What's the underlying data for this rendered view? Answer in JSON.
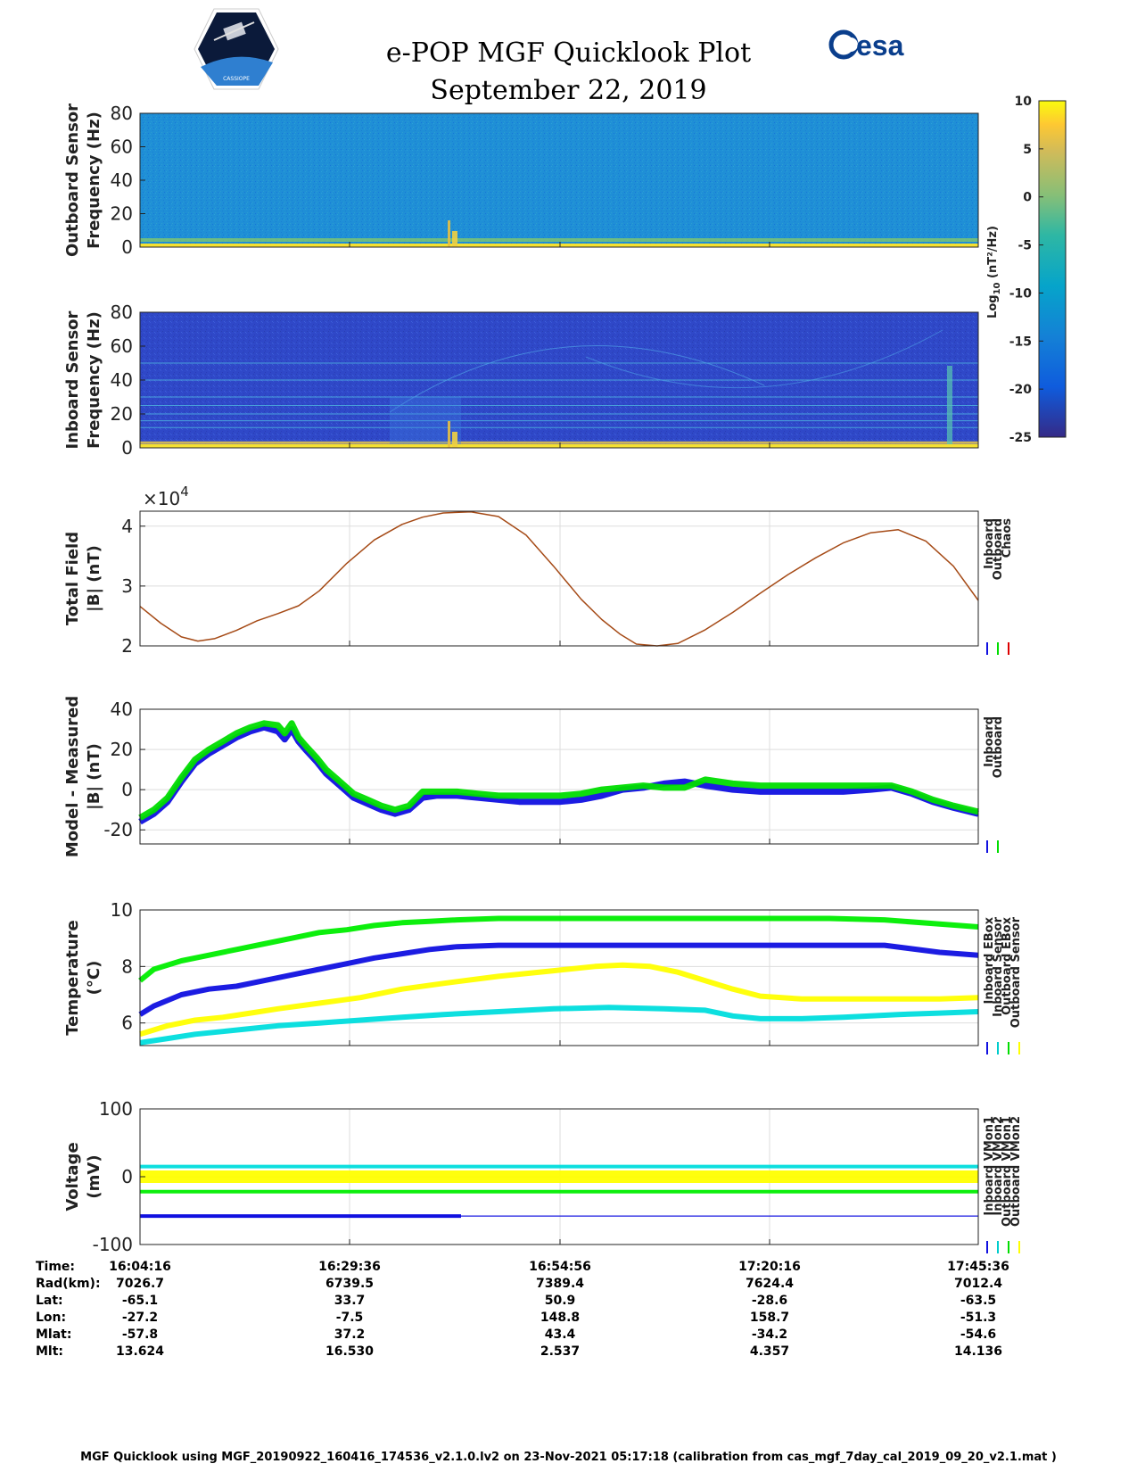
{
  "header": {
    "title": "e-POP MGF Quicklook Plot",
    "date": "September 22, 2019",
    "esa_logo_text": "esa",
    "mission_logo_text": "CASSIOPE"
  },
  "colorbar": {
    "label": "Log10 (nT²/Hz)",
    "label_main": "Log",
    "label_sub": "10",
    "label_rest": " (nT²/Hz)",
    "ticks": [
      10,
      5,
      0,
      -5,
      -10,
      -15,
      -20,
      -25
    ],
    "range": [
      -25,
      10
    ]
  },
  "footer": "MGF Quicklook using MGF_20190922_160416_174536_v2.1.0.lv2 on 23-Nov-2021 05:17:18 (calibration from cas_mgf_7day_cal_2019_09_20_v2.1.mat )",
  "info_table": {
    "labels": [
      "Time:",
      "Rad(km):",
      "Lat:",
      "Lon:",
      "Mlat:",
      "Mlt:"
    ],
    "columns": [
      [
        "16:04:16",
        "7026.7",
        "-65.1",
        "-27.2",
        "-57.8",
        "13.624"
      ],
      [
        "16:29:36",
        "6739.5",
        "33.7",
        "-7.5",
        "37.2",
        "16.530"
      ],
      [
        "16:54:56",
        "7389.4",
        "50.9",
        "148.8",
        "43.4",
        "2.537"
      ],
      [
        "17:20:16",
        "7624.4",
        "-28.6",
        "158.7",
        "-34.2",
        "4.357"
      ],
      [
        "17:45:36",
        "7012.4",
        "-63.5",
        "-51.3",
        "-54.6",
        "14.136"
      ]
    ]
  },
  "chart_data": [
    {
      "type": "heatmap",
      "id": "outboard-spectrogram",
      "ylabel": [
        "Outboard Sensor",
        "Frequency (Hz)"
      ],
      "ylim": [
        0,
        80
      ],
      "yticks": [
        0,
        20,
        40,
        60,
        80
      ],
      "xlim": [
        0,
        6080
      ],
      "description_levels": {
        "background": -12,
        "low_freq_band": 8
      }
    },
    {
      "type": "heatmap",
      "id": "inboard-spectrogram",
      "ylabel": [
        "Inboard Sensor",
        "Frequency (Hz)"
      ],
      "ylim": [
        0,
        80
      ],
      "yticks": [
        0,
        20,
        40,
        60,
        80
      ],
      "xlim": [
        0,
        6080
      ],
      "horizontal_lines_hz": [
        3,
        12,
        16,
        20,
        25,
        30,
        40,
        50
      ]
    },
    {
      "type": "line",
      "id": "total-field",
      "ylabel": [
        "Total Field",
        "|B| (nT)"
      ],
      "ylim": [
        20000,
        42500
      ],
      "yticks": [
        20000,
        30000,
        40000
      ],
      "ytick_labels": [
        "2",
        "3",
        "4"
      ],
      "exponent_label": "×10",
      "exponent_power": "4",
      "xlim": [
        0,
        6080
      ],
      "legend": [
        "Inboard",
        "Outboard",
        "Chaos"
      ],
      "legend_colors": [
        "#1010e0",
        "#00dd00",
        "#dd0000"
      ],
      "series": [
        {
          "name": "Chaos",
          "color": "#a0400a",
          "x": [
            0,
            150,
            300,
            420,
            540,
            700,
            850,
            1000,
            1150,
            1300,
            1500,
            1700,
            1900,
            2050,
            2200,
            2400,
            2600,
            2800,
            3000,
            3200,
            3350,
            3480,
            3600,
            3750,
            3900,
            4100,
            4300,
            4500,
            4700,
            4900,
            5100,
            5300,
            5500,
            5700,
            5900,
            6080
          ],
          "values": [
            26600,
            23800,
            21500,
            20800,
            21200,
            22600,
            24200,
            25400,
            26700,
            29200,
            33800,
            37700,
            40300,
            41500,
            42200,
            42400,
            41600,
            38500,
            33300,
            27800,
            24400,
            22000,
            20300,
            20000,
            20400,
            22700,
            25600,
            28800,
            31900,
            34700,
            37200,
            38900,
            39400,
            37500,
            33300,
            27600
          ]
        }
      ]
    },
    {
      "type": "line",
      "id": "model-minus-measured",
      "ylabel": [
        "Model - Measured",
        "|B| (nT)"
      ],
      "ylim": [
        -27,
        40
      ],
      "yticks": [
        -20,
        0,
        20,
        40
      ],
      "xlim": [
        0,
        6080
      ],
      "legend": [
        "Inboard",
        "Outboard"
      ],
      "legend_colors": [
        "#1010e0",
        "#00dd00"
      ],
      "series": [
        {
          "name": "Inboard",
          "color": "#1010e0",
          "x": [
            0,
            100,
            200,
            300,
            400,
            500,
            600,
            700,
            800,
            900,
            1000,
            1050,
            1100,
            1150,
            1200,
            1280,
            1350,
            1450,
            1550,
            1650,
            1750,
            1850,
            1950,
            2050,
            2150,
            2300,
            2450,
            2600,
            2750,
            2900,
            3050,
            3200,
            3350,
            3500,
            3650,
            3800,
            3950,
            4100,
            4300,
            4500,
            4700,
            4900,
            5100,
            5300,
            5450,
            5600,
            5750,
            5900,
            6080
          ],
          "values": [
            -16,
            -12,
            -6,
            4,
            13,
            18,
            22,
            26,
            29,
            31,
            29,
            25,
            30,
            24,
            20,
            14,
            8,
            2,
            -4,
            -7,
            -10,
            -12,
            -10,
            -4,
            -3,
            -3,
            -4,
            -5,
            -6,
            -6,
            -6,
            -5,
            -3,
            0,
            1,
            3,
            4,
            2,
            0,
            -1,
            -1,
            -1,
            -1,
            0,
            1,
            -2,
            -6,
            -9,
            -12
          ]
        },
        {
          "name": "Outboard",
          "color": "#00dd00",
          "x": [
            0,
            100,
            200,
            300,
            400,
            500,
            600,
            700,
            800,
            900,
            1000,
            1050,
            1100,
            1150,
            1200,
            1280,
            1350,
            1450,
            1550,
            1650,
            1750,
            1850,
            1950,
            2050,
            2150,
            2300,
            2450,
            2600,
            2750,
            2900,
            3050,
            3200,
            3350,
            3500,
            3650,
            3800,
            3950,
            4100,
            4300,
            4500,
            4700,
            4900,
            5100,
            5300,
            5450,
            5600,
            5750,
            5900,
            6080
          ],
          "values": [
            -14,
            -10,
            -4,
            6,
            15,
            20,
            24,
            28,
            31,
            33,
            32,
            28,
            33,
            26,
            22,
            16,
            10,
            4,
            -2,
            -5,
            -8,
            -10,
            -8,
            -1,
            -1,
            -1,
            -2,
            -3,
            -3,
            -3,
            -3,
            -2,
            0,
            1,
            2,
            1,
            1,
            5,
            3,
            2,
            2,
            2,
            2,
            2,
            2,
            -1,
            -5,
            -8,
            -11
          ]
        }
      ]
    },
    {
      "type": "line",
      "id": "temperature",
      "ylabel": [
        "Temperature",
        "(°C)"
      ],
      "ylim": [
        5.2,
        10
      ],
      "yticks": [
        6,
        8,
        10
      ],
      "xlim": [
        0,
        6080
      ],
      "legend": [
        "Inboard EBox",
        "Inboard Sensor",
        "Outboard EBox",
        "Outboard Sensor"
      ],
      "legend_colors": [
        "#1010e0",
        "#00cccc",
        "#00dd00",
        "#ffff00"
      ],
      "series": [
        {
          "name": "Inboard EBox",
          "color": "#1010e0",
          "x": [
            0,
            100,
            300,
            500,
            700,
            900,
            1100,
            1300,
            1500,
            1700,
            1900,
            2100,
            2300,
            2600,
            3000,
            3400,
            3800,
            4200,
            4600,
            5000,
            5400,
            5800,
            6080
          ],
          "values": [
            6.3,
            6.6,
            7.0,
            7.2,
            7.3,
            7.5,
            7.7,
            7.9,
            8.1,
            8.3,
            8.45,
            8.6,
            8.7,
            8.75,
            8.75,
            8.75,
            8.75,
            8.75,
            8.75,
            8.75,
            8.75,
            8.5,
            8.4
          ]
        },
        {
          "name": "Inboard Sensor",
          "color": "#00dddd",
          "x": [
            0,
            200,
            400,
            600,
            800,
            1000,
            1300,
            1600,
            1900,
            2200,
            2600,
            3000,
            3400,
            3800,
            4100,
            4300,
            4500,
            4800,
            5100,
            5500,
            5800,
            6080
          ],
          "values": [
            5.3,
            5.45,
            5.6,
            5.7,
            5.8,
            5.9,
            6.0,
            6.1,
            6.2,
            6.3,
            6.4,
            6.5,
            6.55,
            6.5,
            6.45,
            6.25,
            6.15,
            6.15,
            6.2,
            6.3,
            6.35,
            6.4
          ]
        },
        {
          "name": "Outboard EBox",
          "color": "#00ee00",
          "x": [
            0,
            100,
            300,
            500,
            700,
            900,
            1100,
            1300,
            1500,
            1700,
            1900,
            2100,
            2300,
            2600,
            3000,
            3400,
            3800,
            4200,
            4600,
            5000,
            5400,
            5800,
            6080
          ],
          "values": [
            7.5,
            7.9,
            8.2,
            8.4,
            8.6,
            8.8,
            9.0,
            9.2,
            9.3,
            9.45,
            9.55,
            9.6,
            9.65,
            9.7,
            9.7,
            9.7,
            9.7,
            9.7,
            9.7,
            9.7,
            9.65,
            9.5,
            9.4
          ]
        },
        {
          "name": "Outboard Sensor",
          "color": "#ffff00",
          "x": [
            0,
            200,
            400,
            600,
            800,
            1000,
            1300,
            1600,
            1900,
            2200,
            2600,
            3000,
            3300,
            3500,
            3700,
            3900,
            4100,
            4300,
            4500,
            4800,
            5100,
            5500,
            5800,
            6080
          ],
          "values": [
            5.6,
            5.9,
            6.1,
            6.2,
            6.35,
            6.5,
            6.7,
            6.9,
            7.2,
            7.4,
            7.65,
            7.85,
            8.0,
            8.05,
            8.0,
            7.8,
            7.5,
            7.2,
            6.95,
            6.85,
            6.85,
            6.85,
            6.85,
            6.9
          ]
        }
      ]
    },
    {
      "type": "line",
      "id": "voltage",
      "ylabel": [
        "Voltage",
        "(mV)"
      ],
      "ylim": [
        -100,
        100
      ],
      "yticks": [
        -100,
        0,
        100
      ],
      "xlim": [
        0,
        6080
      ],
      "xticks": [
        0,
        1520,
        3040,
        4560,
        6080
      ],
      "legend": [
        "Inboard VMon1",
        "Inboard VMon2",
        "Outboard VMon1",
        "Outboard VMon2"
      ],
      "legend_colors": [
        "#1010e0",
        "#00cccc",
        "#00dd00",
        "#ffff00"
      ],
      "series": [
        {
          "name": "Inboard VMon1",
          "color": "#1010e0",
          "x": [
            0,
            6080
          ],
          "values": [
            -58,
            -58
          ]
        },
        {
          "name": "Inboard VMon2",
          "color": "#00dddd",
          "x": [
            0,
            6080
          ],
          "values": [
            15,
            15
          ]
        },
        {
          "name": "Outboard VMon1",
          "color": "#00ee00",
          "x": [
            0,
            6080
          ],
          "values": [
            -22,
            -22
          ]
        },
        {
          "name": "Outboard VMon2",
          "color": "#ffff00",
          "x": [
            0,
            6080
          ],
          "values": [
            0,
            0
          ]
        }
      ]
    }
  ]
}
